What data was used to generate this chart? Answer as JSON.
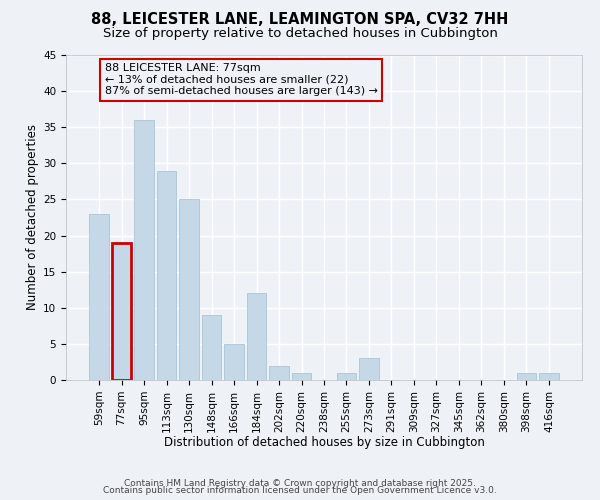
{
  "title_line1": "88, LEICESTER LANE, LEAMINGTON SPA, CV32 7HH",
  "title_line2": "Size of property relative to detached houses in Cubbington",
  "xlabel": "Distribution of detached houses by size in Cubbington",
  "ylabel": "Number of detached properties",
  "bar_color": "#c5d8e8",
  "bar_edge_color": "#a8c4d8",
  "highlight_bar_edge_color": "#cc0000",
  "highlight_bar_index": 1,
  "categories": [
    "59sqm",
    "77sqm",
    "95sqm",
    "113sqm",
    "130sqm",
    "148sqm",
    "166sqm",
    "184sqm",
    "202sqm",
    "220sqm",
    "238sqm",
    "255sqm",
    "273sqm",
    "291sqm",
    "309sqm",
    "327sqm",
    "345sqm",
    "362sqm",
    "380sqm",
    "398sqm",
    "416sqm"
  ],
  "values": [
    23,
    19,
    36,
    29,
    25,
    9,
    5,
    12,
    2,
    1,
    0,
    1,
    3,
    0,
    0,
    0,
    0,
    0,
    0,
    1,
    1
  ],
  "ylim": [
    0,
    45
  ],
  "yticks": [
    0,
    5,
    10,
    15,
    20,
    25,
    30,
    35,
    40,
    45
  ],
  "annotation_line1": "88 LEICESTER LANE: 77sqm",
  "annotation_line2": "← 13% of detached houses are smaller (22)",
  "annotation_line3": "87% of semi-detached houses are larger (143) →",
  "footer_line1": "Contains HM Land Registry data © Crown copyright and database right 2025.",
  "footer_line2": "Contains public sector information licensed under the Open Government Licence v3.0.",
  "bg_color": "#eef2f7",
  "grid_color": "#ffffff",
  "title_fontsize": 10.5,
  "subtitle_fontsize": 9.5,
  "axis_label_fontsize": 8.5,
  "tick_fontsize": 7.5,
  "annotation_fontsize": 8,
  "footer_fontsize": 6.5
}
